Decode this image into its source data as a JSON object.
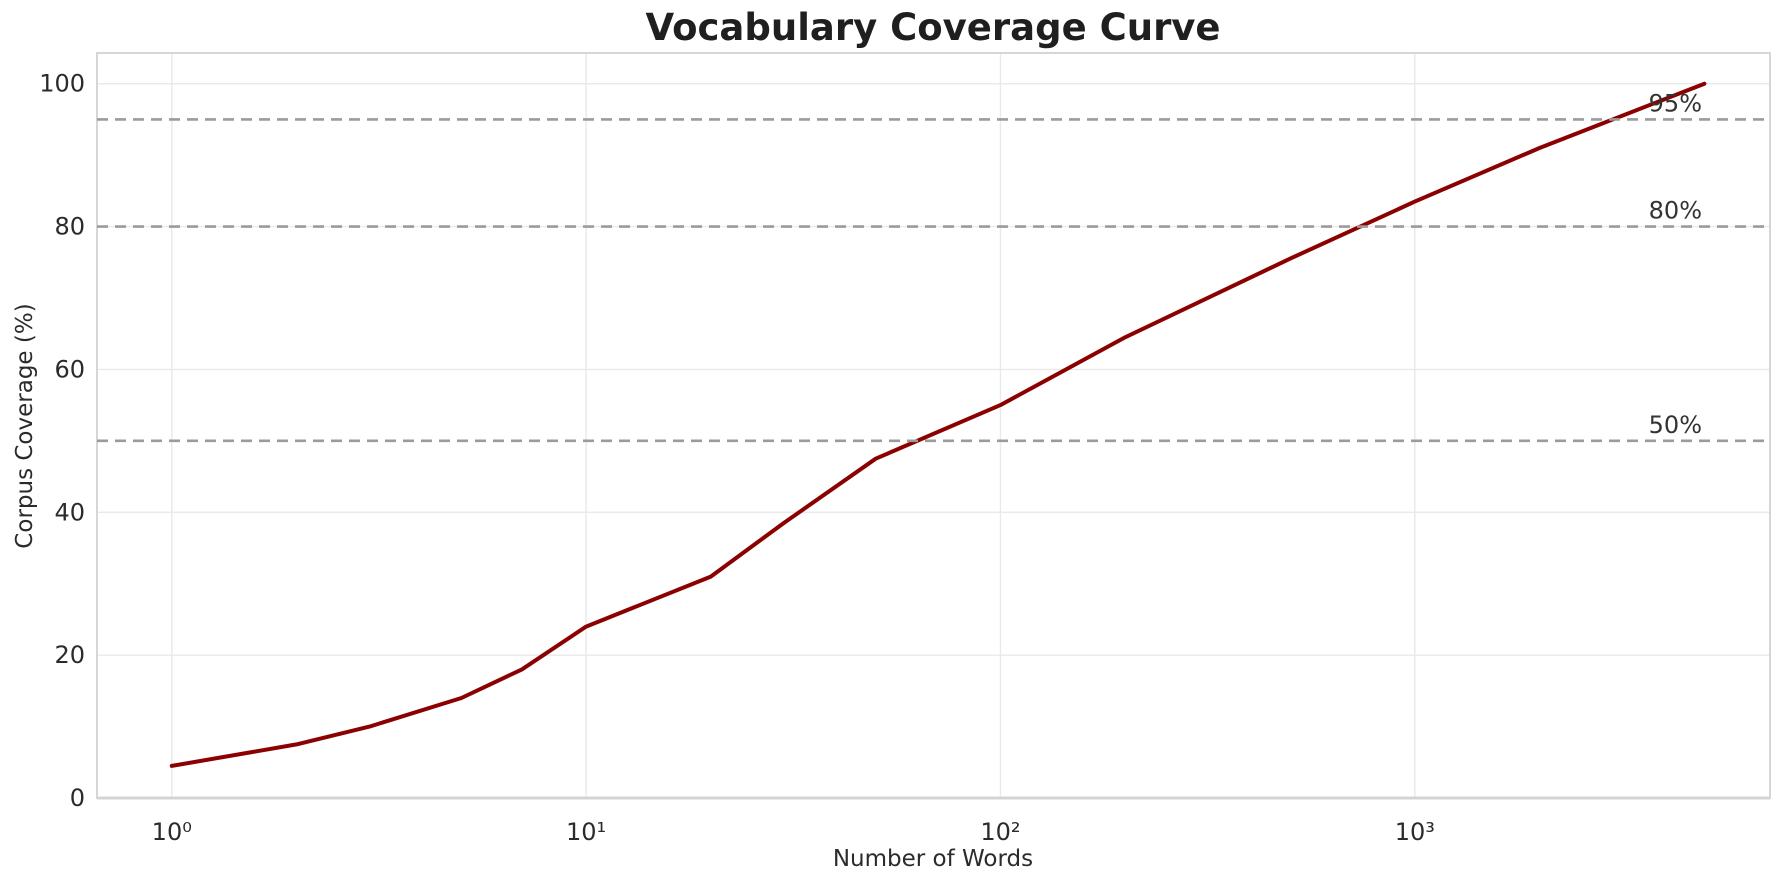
{
  "chart_data": {
    "type": "line",
    "title": "Vocabulary Coverage Curve",
    "xlabel": "Number of Words",
    "ylabel": "Corpus Coverage (%)",
    "x_scale": "log",
    "xlim": [
      0.66,
      7200
    ],
    "ylim": [
      0,
      104.3
    ],
    "grid": true,
    "legend_position": "none",
    "x_ticks": [
      {
        "value": 1,
        "label": "10⁰"
      },
      {
        "value": 10,
        "label": "10¹"
      },
      {
        "value": 100,
        "label": "10²"
      },
      {
        "value": 1000,
        "label": "10³"
      }
    ],
    "y_ticks": [
      0,
      20,
      40,
      60,
      80,
      100
    ],
    "series": [
      {
        "name": "vocabulary-coverage",
        "color": "#8B0000",
        "line_width": 4,
        "x": [
          1,
          2,
          3,
          5,
          7,
          10,
          20,
          30,
          50,
          100,
          200,
          500,
          1000,
          2000,
          5000
        ],
        "y": [
          4.5,
          7.5,
          10,
          14,
          18,
          24,
          31,
          38.5,
          47.5,
          55,
          64.5,
          75.5,
          83.5,
          91,
          100
        ]
      }
    ],
    "reference_lines": [
      {
        "value": 50,
        "label": "50%"
      },
      {
        "value": 80,
        "label": "80%"
      },
      {
        "value": 95,
        "label": "95%"
      }
    ],
    "reference_style": {
      "color": "#9b9b9b",
      "dash": [
        11,
        7
      ],
      "line_width": 2.6
    }
  }
}
